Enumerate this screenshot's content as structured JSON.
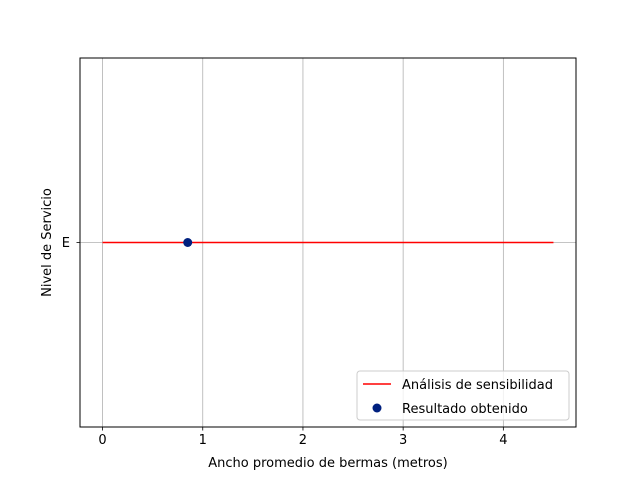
{
  "chart_data": {
    "type": "line",
    "title": "",
    "xlabel": "Ancho promedio de bermas (metros)",
    "ylabel": "Nivel de Servicio",
    "xlim": [
      -0.225,
      4.725
    ],
    "ylim": [
      -1,
      1
    ],
    "x_ticks": [
      0,
      1,
      2,
      3,
      4
    ],
    "x_tick_labels": [
      "0",
      "1",
      "2",
      "3",
      "4"
    ],
    "y_ticks": [
      0
    ],
    "y_tick_labels": [
      "E"
    ],
    "grid": true,
    "legend_position": "lower-right",
    "series": [
      {
        "name": "Análisis de sensibilidad",
        "kind": "line",
        "color": "#ff0000",
        "x": [
          0,
          4.5
        ],
        "y": [
          "E",
          "E"
        ]
      },
      {
        "name": "Resultado obtenido",
        "kind": "scatter",
        "color": "#00207f",
        "x": [
          0.85
        ],
        "y": [
          "E"
        ]
      }
    ]
  }
}
